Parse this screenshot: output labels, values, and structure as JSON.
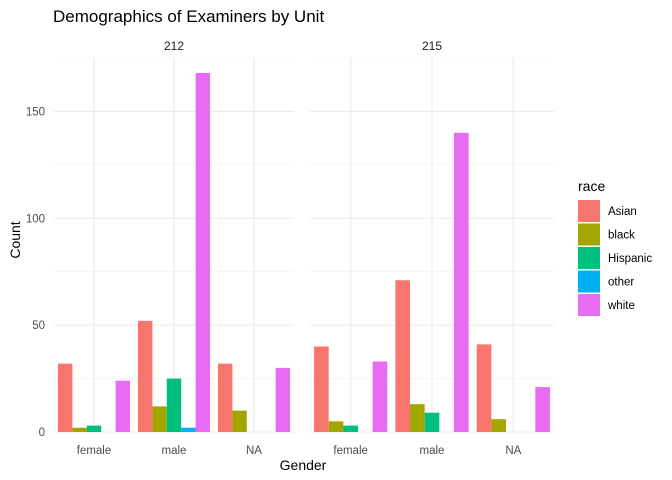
{
  "chart_data": {
    "type": "bar",
    "title": "Demographics of Examiners by Unit",
    "xlabel": "Gender",
    "ylabel": "Count",
    "ylim": [
      0,
      175
    ],
    "yticks": [
      0,
      50,
      100,
      150
    ],
    "categories": [
      "female",
      "male",
      "NA"
    ],
    "legend": {
      "title": "race",
      "position": "right"
    },
    "grid": true,
    "races": [
      {
        "name": "Asian",
        "color": "#F8766D"
      },
      {
        "name": "black",
        "color": "#A3A500"
      },
      {
        "name": "Hispanic",
        "color": "#00BF7D"
      },
      {
        "name": "other",
        "color": "#00B0F6"
      },
      {
        "name": "white",
        "color": "#E76BF3"
      }
    ],
    "panels": [
      {
        "label": "212",
        "groups": [
          {
            "category": "female",
            "bars": [
              {
                "race": "Asian",
                "value": 32
              },
              {
                "race": "black",
                "value": 2
              },
              {
                "race": "Hispanic",
                "value": 3
              },
              {
                "race": "white",
                "value": 24
              }
            ]
          },
          {
            "category": "male",
            "bars": [
              {
                "race": "Asian",
                "value": 52
              },
              {
                "race": "black",
                "value": 12
              },
              {
                "race": "Hispanic",
                "value": 25
              },
              {
                "race": "other",
                "value": 2
              },
              {
                "race": "white",
                "value": 168
              }
            ]
          },
          {
            "category": "NA",
            "bars": [
              {
                "race": "Asian",
                "value": 32
              },
              {
                "race": "black",
                "value": 10
              },
              {
                "race": "white",
                "value": 30
              }
            ]
          }
        ]
      },
      {
        "label": "215",
        "groups": [
          {
            "category": "female",
            "bars": [
              {
                "race": "Asian",
                "value": 40
              },
              {
                "race": "black",
                "value": 5
              },
              {
                "race": "Hispanic",
                "value": 3
              },
              {
                "race": "white",
                "value": 33
              }
            ]
          },
          {
            "category": "male",
            "bars": [
              {
                "race": "Asian",
                "value": 71
              },
              {
                "race": "black",
                "value": 13
              },
              {
                "race": "Hispanic",
                "value": 9
              },
              {
                "race": "white",
                "value": 140
              }
            ]
          },
          {
            "category": "NA",
            "bars": [
              {
                "race": "Asian",
                "value": 41
              },
              {
                "race": "black",
                "value": 6
              },
              {
                "race": "white",
                "value": 21
              }
            ]
          }
        ]
      }
    ]
  }
}
